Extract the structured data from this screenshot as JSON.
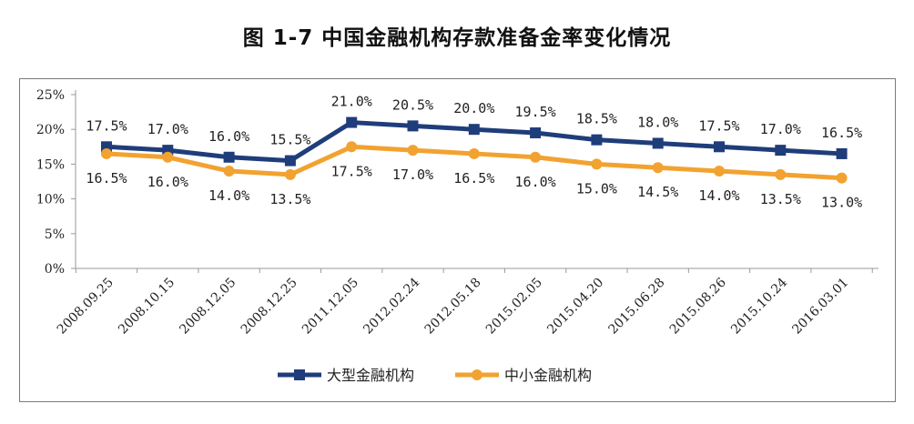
{
  "title": "图 1-7    中国金融机构存款准备金率变化情况",
  "colors": {
    "large": "#1f3d7a",
    "small": "#f2a230",
    "axis": "#9a9a9a"
  },
  "chart_data": {
    "type": "line",
    "title": "图 1-7    中国金融机构存款准备金率变化情况",
    "xlabel": "",
    "ylabel": "",
    "ylim": [
      0,
      25
    ],
    "yticks": [
      "0%",
      "5%",
      "10%",
      "15%",
      "20%",
      "25%"
    ],
    "grid": false,
    "legend": "bottom",
    "categories": [
      "2008.09.25",
      "2008.10.15",
      "2008.12.05",
      "2008.12.25",
      "2011.12.05",
      "2012.02.24",
      "2012.05.18",
      "2015.02.05",
      "2015.04.20",
      "2015.06.28",
      "2015.08.26",
      "2015.10.24",
      "2016.03.01"
    ],
    "series": [
      {
        "name": "大型金融机构",
        "marker": "square",
        "values": [
          17.5,
          17.0,
          16.0,
          15.5,
          21.0,
          20.5,
          20.0,
          19.5,
          18.5,
          18.0,
          17.5,
          17.0,
          16.5
        ],
        "labels": [
          "17.5%",
          "17.0%",
          "16.0%",
          "15.5%",
          "21.0%",
          "20.5%",
          "20.0%",
          "19.5%",
          "18.5%",
          "18.0%",
          "17.5%",
          "17.0%",
          "16.5%"
        ]
      },
      {
        "name": "中小金融机构",
        "marker": "circle",
        "values": [
          16.5,
          16.0,
          14.0,
          13.5,
          17.5,
          17.0,
          16.5,
          16.0,
          15.0,
          14.5,
          14.0,
          13.5,
          13.0
        ],
        "labels": [
          "16.5%",
          "16.0%",
          "14.0%",
          "13.5%",
          "17.5%",
          "17.0%",
          "16.5%",
          "16.0%",
          "15.0%",
          "14.5%",
          "14.0%",
          "13.5%",
          "13.0%"
        ]
      }
    ]
  }
}
